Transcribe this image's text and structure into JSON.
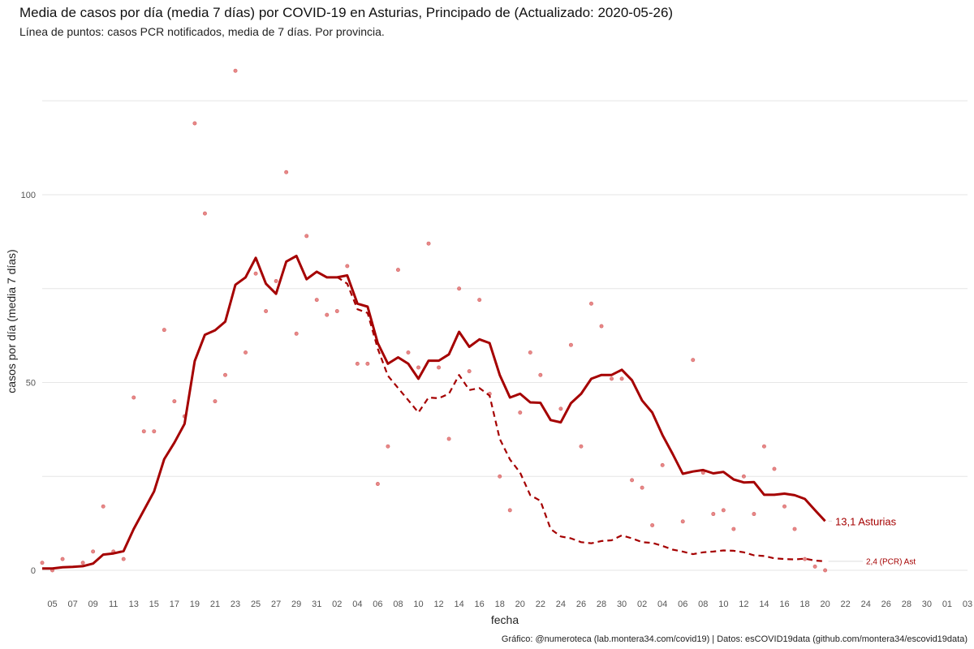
{
  "page": {
    "title": "Media de casos por día (media 7 días) por COVID-19 en Asturias, Principado de (Actualizado: 2020-05-26)",
    "subtitle": "Línea de puntos: casos PCR notificados, media de 7 días. Por provincia.",
    "caption": "Gráfico: @numeroteca (lab.montera34.com/covid19) | Datos: esCOVID19data (github.com/montera34/escovid19data)"
  },
  "chart_data": {
    "type": "line",
    "xlabel": "fecha",
    "ylabel": "casos por día (media 7 días)",
    "ylim": [
      -7,
      135
    ],
    "yticks": [
      0,
      50,
      100
    ],
    "grid": true,
    "x_tick_labels": [
      "05",
      "07",
      "09",
      "11",
      "13",
      "15",
      "17",
      "19",
      "21",
      "23",
      "25",
      "27",
      "29",
      "31",
      "02",
      "04",
      "06",
      "08",
      "10",
      "12",
      "14",
      "16",
      "18",
      "20",
      "22",
      "24",
      "26",
      "28",
      "30",
      "02",
      "04",
      "06",
      "08",
      "10",
      "12",
      "14",
      "16",
      "18",
      "20",
      "22",
      "24",
      "26",
      "28",
      "30",
      "01",
      "03"
    ],
    "x_range": [
      "2020-03-04",
      "2020-06-03"
    ],
    "series": [
      {
        "name": "Asturias",
        "style": "solid",
        "color": "#a50000",
        "end_label": "13,1 Asturias",
        "x": [
          "2020-03-04",
          "2020-03-05",
          "2020-03-06",
          "2020-03-07",
          "2020-03-08",
          "2020-03-09",
          "2020-03-10",
          "2020-03-11",
          "2020-03-12",
          "2020-03-13",
          "2020-03-14",
          "2020-03-15",
          "2020-03-16",
          "2020-03-17",
          "2020-03-18",
          "2020-03-19",
          "2020-03-20",
          "2020-03-21",
          "2020-03-22",
          "2020-03-23",
          "2020-03-24",
          "2020-03-25",
          "2020-03-26",
          "2020-03-27",
          "2020-03-28",
          "2020-03-29",
          "2020-03-30",
          "2020-03-31",
          "2020-04-01",
          "2020-04-02",
          "2020-04-03",
          "2020-04-04",
          "2020-04-05",
          "2020-04-06",
          "2020-04-07",
          "2020-04-08",
          "2020-04-09",
          "2020-04-10",
          "2020-04-11",
          "2020-04-12",
          "2020-04-13",
          "2020-04-14",
          "2020-04-15",
          "2020-04-16",
          "2020-04-17",
          "2020-04-18",
          "2020-04-19",
          "2020-04-20",
          "2020-04-21",
          "2020-04-22",
          "2020-04-23",
          "2020-04-24",
          "2020-04-25",
          "2020-04-26",
          "2020-04-27",
          "2020-04-28",
          "2020-04-29",
          "2020-04-30",
          "2020-05-01",
          "2020-05-02",
          "2020-05-03",
          "2020-05-04",
          "2020-05-05",
          "2020-05-06",
          "2020-05-07",
          "2020-05-08",
          "2020-05-09",
          "2020-05-10",
          "2020-05-11",
          "2020-05-12",
          "2020-05-13",
          "2020-05-14",
          "2020-05-15",
          "2020-05-16",
          "2020-05-17",
          "2020-05-18",
          "2020-05-19",
          "2020-05-20"
        ],
        "y": [
          0.5,
          0.5,
          0.8,
          0.9,
          1.1,
          1.8,
          4.2,
          4.5,
          5.1,
          11,
          16,
          21,
          29.6,
          34,
          39,
          55.7,
          62.7,
          63.9,
          66.2,
          76,
          78,
          83.2,
          76.3,
          73.6,
          82.2,
          83.7,
          77.5,
          79.5,
          78,
          78,
          78.5,
          71,
          70.2,
          60.5,
          55,
          56.7,
          55,
          51,
          55.8,
          55.8,
          57.5,
          63.5,
          59.5,
          61.5,
          60.5,
          52,
          46,
          47,
          44.7,
          44.6,
          40,
          39.4,
          44.5,
          47,
          51,
          52,
          52,
          53.4,
          50.6,
          45.2,
          42,
          36,
          31,
          25.7,
          26.3,
          26.7,
          25.8,
          26.2,
          24.2,
          23.4,
          23.5,
          20.1,
          20.1,
          20.4,
          20,
          19,
          16,
          13.1
        ]
      },
      {
        "name": "2,4 (PCR) Ast",
        "style": "dashed",
        "color": "#a50000",
        "end_label": "2,4 (PCR) Ast",
        "x": [
          "2020-04-02",
          "2020-04-03",
          "2020-04-04",
          "2020-04-05",
          "2020-04-06",
          "2020-04-07",
          "2020-04-08",
          "2020-04-09",
          "2020-04-10",
          "2020-04-11",
          "2020-04-12",
          "2020-04-13",
          "2020-04-14",
          "2020-04-15",
          "2020-04-16",
          "2020-04-17",
          "2020-04-18",
          "2020-04-19",
          "2020-04-20",
          "2020-04-21",
          "2020-04-22",
          "2020-04-23",
          "2020-04-24",
          "2020-04-25",
          "2020-04-26",
          "2020-04-27",
          "2020-04-28",
          "2020-04-29",
          "2020-04-30",
          "2020-05-01",
          "2020-05-02",
          "2020-05-03",
          "2020-05-04",
          "2020-05-05",
          "2020-05-06",
          "2020-05-07",
          "2020-05-08",
          "2020-05-09",
          "2020-05-10",
          "2020-05-11",
          "2020-05-12",
          "2020-05-13",
          "2020-05-14",
          "2020-05-15",
          "2020-05-16",
          "2020-05-17",
          "2020-05-18",
          "2020-05-19",
          "2020-05-20"
        ],
        "y": [
          78.1,
          76.3,
          69.5,
          68.5,
          59,
          51.8,
          48.5,
          45.3,
          42,
          46,
          45.8,
          47,
          52,
          48,
          48.5,
          46.5,
          35,
          29.5,
          26,
          20,
          18.5,
          11,
          9,
          8.5,
          7.5,
          7.2,
          7.8,
          8,
          9.3,
          8.5,
          7.5,
          7.3,
          6.5,
          5.5,
          5,
          4.3,
          4.8,
          5,
          5.3,
          5.2,
          4.8,
          4,
          3.8,
          3.2,
          3,
          2.9,
          3.1,
          2.6,
          2.4
        ]
      },
      {
        "name": "casos diarios",
        "style": "points",
        "color": "#e06060",
        "x": [
          "2020-03-04",
          "2020-03-05",
          "2020-03-06",
          "2020-03-08",
          "2020-03-09",
          "2020-03-10",
          "2020-03-11",
          "2020-03-12",
          "2020-03-13",
          "2020-03-14",
          "2020-03-15",
          "2020-03-16",
          "2020-03-17",
          "2020-03-18",
          "2020-03-19",
          "2020-03-20",
          "2020-03-21",
          "2020-03-22",
          "2020-03-23",
          "2020-03-24",
          "2020-03-25",
          "2020-03-26",
          "2020-03-27",
          "2020-03-28",
          "2020-03-29",
          "2020-03-30",
          "2020-03-31",
          "2020-04-01",
          "2020-04-02",
          "2020-04-03",
          "2020-04-04",
          "2020-04-05",
          "2020-04-06",
          "2020-04-07",
          "2020-04-08",
          "2020-04-09",
          "2020-04-10",
          "2020-04-11",
          "2020-04-12",
          "2020-04-13",
          "2020-04-14",
          "2020-04-15",
          "2020-04-16",
          "2020-04-17",
          "2020-04-18",
          "2020-04-19",
          "2020-04-20",
          "2020-04-21",
          "2020-04-22",
          "2020-04-24",
          "2020-04-25",
          "2020-04-26",
          "2020-04-27",
          "2020-04-28",
          "2020-04-29",
          "2020-04-30",
          "2020-05-01",
          "2020-05-02",
          "2020-05-03",
          "2020-05-04",
          "2020-05-06",
          "2020-05-07",
          "2020-05-08",
          "2020-05-09",
          "2020-05-10",
          "2020-05-11",
          "2020-05-12",
          "2020-05-13",
          "2020-05-14",
          "2020-05-15",
          "2020-05-16",
          "2020-05-17",
          "2020-05-18",
          "2020-05-19",
          "2020-05-20"
        ],
        "y": [
          2,
          0,
          3,
          2,
          5,
          17,
          5,
          3,
          46,
          37,
          37,
          64,
          45,
          41,
          119,
          95,
          45,
          52,
          133,
          58,
          79,
          69,
          77,
          106,
          63,
          89,
          72,
          68,
          69,
          81,
          55,
          55,
          23,
          33,
          80,
          58,
          54,
          87,
          54,
          35,
          75,
          53,
          72,
          47,
          25,
          16,
          42,
          58,
          52,
          43,
          60,
          33,
          71,
          65,
          51,
          51,
          24,
          22,
          12,
          28,
          13,
          56,
          26,
          15,
          16,
          11,
          25,
          15,
          33,
          27,
          17,
          11,
          3,
          1,
          0
        ]
      }
    ]
  }
}
